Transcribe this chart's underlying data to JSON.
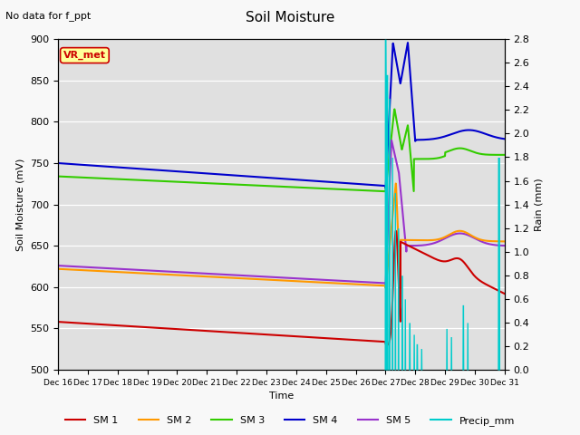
{
  "title": "Soil Moisture",
  "subtitle": "No data for f_ppt",
  "xlabel": "Time",
  "ylabel_left": "Soil Moisture (mV)",
  "ylabel_right": "Rain (mm)",
  "ylim_left": [
    500,
    900
  ],
  "ylim_right": [
    0.0,
    2.8
  ],
  "yticks_left": [
    500,
    550,
    600,
    650,
    700,
    750,
    800,
    850,
    900
  ],
  "yticks_right": [
    0.0,
    0.2,
    0.4,
    0.6,
    0.8,
    1.0,
    1.2,
    1.4,
    1.6,
    1.8,
    2.0,
    2.2,
    2.4,
    2.6,
    2.8
  ],
  "n_days": 15,
  "rain_day": 11.0,
  "colors": {
    "SM1": "#cc0000",
    "SM2": "#ff9900",
    "SM3": "#33cc00",
    "SM4": "#0000cc",
    "SM5": "#9933cc",
    "Precip": "#00cccc"
  },
  "bg_color": "#e0e0e0",
  "vr_met_color": "#cc0000",
  "vr_met_bg": "#ffff99",
  "linewidth": 1.5
}
